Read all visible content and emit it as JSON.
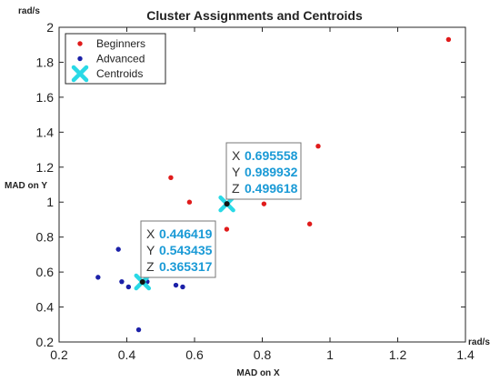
{
  "chart_data": {
    "type": "scatter",
    "title": "Cluster Assignments and Centroids",
    "xlabel": "MAD on X",
    "ylabel": "MAD on Y",
    "x_unit": "rad/s",
    "y_unit": "rad/s",
    "xlim": [
      0.2,
      1.4
    ],
    "ylim": [
      0.2,
      2.0
    ],
    "xticks": [
      "0.2",
      "0.4",
      "0.6",
      "0.8",
      "1",
      "1.2",
      "1.4"
    ],
    "yticks": [
      "0.2",
      "0.4",
      "0.6",
      "0.8",
      "1",
      "1.2",
      "1.4",
      "1.6",
      "1.8",
      "2"
    ],
    "legend_position": "top-left",
    "series": [
      {
        "name": "Beginners",
        "marker": "dot",
        "color": "#e01b1b",
        "points": [
          {
            "x": 0.53,
            "y": 1.14
          },
          {
            "x": 0.585,
            "y": 1.0
          },
          {
            "x": 0.695,
            "y": 0.845
          },
          {
            "x": 0.805,
            "y": 0.99
          },
          {
            "x": 0.94,
            "y": 0.875
          },
          {
            "x": 0.965,
            "y": 1.32
          },
          {
            "x": 1.35,
            "y": 1.93
          }
        ]
      },
      {
        "name": "Advanced",
        "marker": "dot",
        "color": "#1c21a8",
        "points": [
          {
            "x": 0.315,
            "y": 0.57
          },
          {
            "x": 0.375,
            "y": 0.73
          },
          {
            "x": 0.385,
            "y": 0.545
          },
          {
            "x": 0.405,
            "y": 0.515
          },
          {
            "x": 0.435,
            "y": 0.27
          },
          {
            "x": 0.46,
            "y": 0.545
          },
          {
            "x": 0.545,
            "y": 0.525
          },
          {
            "x": 0.565,
            "y": 0.515
          }
        ]
      },
      {
        "name": "Centroids",
        "marker": "x",
        "color": "#29d9e6",
        "points": [
          {
            "x": 0.446419,
            "y": 0.543435
          },
          {
            "x": 0.695558,
            "y": 0.989932
          }
        ]
      }
    ],
    "datatips": [
      {
        "x_label": "X",
        "x_value": "0.695558",
        "y_label": "Y",
        "y_value": "0.989932",
        "z_label": "Z",
        "z_value": "0.499618",
        "anchor": {
          "x": 0.695558,
          "y": 0.989932
        }
      },
      {
        "x_label": "X",
        "x_value": "0.446419",
        "y_label": "Y",
        "y_value": "0.543435",
        "z_label": "Z",
        "z_value": "0.365317",
        "anchor": {
          "x": 0.446419,
          "y": 0.543435
        }
      }
    ]
  }
}
